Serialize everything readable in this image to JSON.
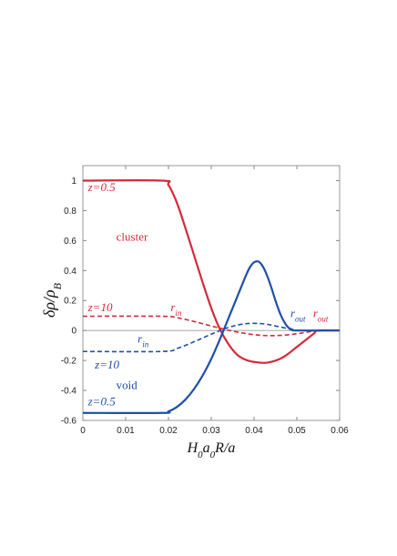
{
  "chart_data": {
    "type": "line",
    "xlabel": "H0a0R/a",
    "ylabel": "δρ/ρB",
    "xlim": [
      0,
      0.06
    ],
    "ylim": [
      -0.6,
      1.1
    ],
    "xticks": [
      "0",
      "0.01",
      "0.02",
      "0.03",
      "0.04",
      "0.05",
      "0.06"
    ],
    "yticks": [
      "-0.6",
      "-0.4",
      "-0.2",
      "0",
      "0.2",
      "0.4",
      "0.6",
      "0.8",
      "1"
    ],
    "grid": false,
    "colors": {
      "cluster": "#d22b3a",
      "void": "#1f4fa8",
      "axis": "#888888"
    },
    "series": [
      {
        "name": "z=0.5",
        "profile": "cluster",
        "style": "solid",
        "x": [
          0,
          0.0185,
          0.02,
          0.022,
          0.024,
          0.026,
          0.028,
          0.03,
          0.032,
          0.034,
          0.036,
          0.038,
          0.04,
          0.043,
          0.046,
          0.048,
          0.05,
          0.052,
          0.054,
          0.055,
          0.06
        ],
        "y": [
          1,
          1,
          0.97,
          0.85,
          0.68,
          0.5,
          0.32,
          0.15,
          0.01,
          -0.09,
          -0.16,
          -0.195,
          -0.21,
          -0.215,
          -0.19,
          -0.155,
          -0.11,
          -0.065,
          -0.02,
          0,
          0
        ]
      },
      {
        "name": "z=10",
        "profile": "cluster",
        "style": "dashed",
        "x": [
          0,
          0.0185,
          0.022,
          0.026,
          0.03,
          0.034,
          0.038,
          0.042,
          0.046,
          0.05,
          0.053,
          0.055,
          0.06
        ],
        "y": [
          0.095,
          0.095,
          0.085,
          0.06,
          0.03,
          0.002,
          -0.02,
          -0.033,
          -0.033,
          -0.022,
          -0.008,
          0,
          0
        ]
      },
      {
        "name": "z=10",
        "profile": "void",
        "style": "dashed",
        "x": [
          0,
          0.0185,
          0.022,
          0.026,
          0.03,
          0.034,
          0.038,
          0.042,
          0.045,
          0.048,
          0.05,
          0.06
        ],
        "y": [
          -0.14,
          -0.14,
          -0.12,
          -0.075,
          -0.025,
          0.02,
          0.045,
          0.045,
          0.03,
          0.012,
          0,
          0
        ]
      },
      {
        "name": "z=0.5",
        "profile": "void",
        "style": "solid",
        "x": [
          0,
          0.0185,
          0.02,
          0.022,
          0.024,
          0.026,
          0.028,
          0.03,
          0.032,
          0.034,
          0.036,
          0.038,
          0.039,
          0.04,
          0.041,
          0.042,
          0.043,
          0.044,
          0.045,
          0.046,
          0.047,
          0.048,
          0.049,
          0.05,
          0.06
        ],
        "y": [
          -0.55,
          -0.55,
          -0.54,
          -0.51,
          -0.46,
          -0.39,
          -0.3,
          -0.19,
          -0.06,
          0.08,
          0.22,
          0.36,
          0.42,
          0.455,
          0.46,
          0.43,
          0.37,
          0.29,
          0.2,
          0.12,
          0.06,
          0.02,
          0.005,
          0,
          0
        ]
      }
    ],
    "annotations": [
      {
        "text": "z=0.5",
        "color": "cluster",
        "x": 0.0012,
        "y": 0.93,
        "italic": true
      },
      {
        "text": "cluster",
        "color": "cluster",
        "x": 0.0078,
        "y": 0.6,
        "italic": false
      },
      {
        "text": "z=10",
        "color": "cluster",
        "x": 0.0012,
        "y": 0.13,
        "italic": true
      },
      {
        "text": "r",
        "sub": "in",
        "color": "cluster",
        "x": 0.0205,
        "y": 0.13,
        "italic": true
      },
      {
        "text": "r",
        "sub": "in",
        "color": "void",
        "x": 0.0128,
        "y": -0.08,
        "italic": true
      },
      {
        "text": "z=10",
        "color": "void",
        "x": 0.0028,
        "y": -0.255,
        "italic": true
      },
      {
        "text": "void",
        "color": "void",
        "x": 0.0078,
        "y": -0.39,
        "italic": false
      },
      {
        "text": "z=0.5",
        "color": "void",
        "x": 0.0012,
        "y": -0.5,
        "italic": true
      },
      {
        "text": "r",
        "sub": "out",
        "color": "void",
        "x": 0.0485,
        "y": 0.09,
        "italic": true
      },
      {
        "text": "r",
        "sub": "out",
        "color": "cluster",
        "x": 0.0538,
        "y": 0.09,
        "italic": true
      }
    ]
  }
}
